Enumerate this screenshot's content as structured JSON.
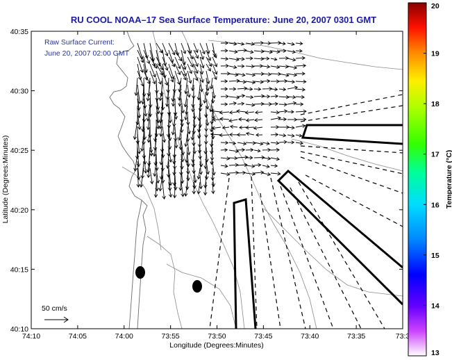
{
  "chart_data": {
    "type": "vector-field map",
    "title": "RU COOL  NOAA–17  Sea Surface Temperature:  June 20, 2007 0301 GMT",
    "annotation_lines": [
      "Raw Surface Current:",
      "June 20, 2007 02:00 GMT"
    ],
    "xlabel": "Longitude (Degrees:Minutes)",
    "ylabel": "Latitude (Degrees:Minutes)",
    "x_ticks": [
      "74:10",
      "74:05",
      "74:00",
      "73:55",
      "73:50",
      "73:45",
      "73:40",
      "73:35",
      "73:3"
    ],
    "y_ticks": [
      "40:10",
      "40:15",
      "40:20",
      "40:25",
      "40:30",
      "40:35"
    ],
    "scale_label": "50 cm/s",
    "colorbar": {
      "label": "Temperature (°C)",
      "ticks": [
        "13",
        "14",
        "15",
        "16",
        "17",
        "18",
        "19",
        "20"
      ],
      "range": [
        13,
        20
      ],
      "colors": [
        "#ffffff",
        "#8800ff",
        "#0000ff",
        "#00ccff",
        "#00ff88",
        "#66ff00",
        "#ffff00",
        "#ff8800",
        "#ff0000",
        "#880000"
      ]
    },
    "grid": false
  }
}
